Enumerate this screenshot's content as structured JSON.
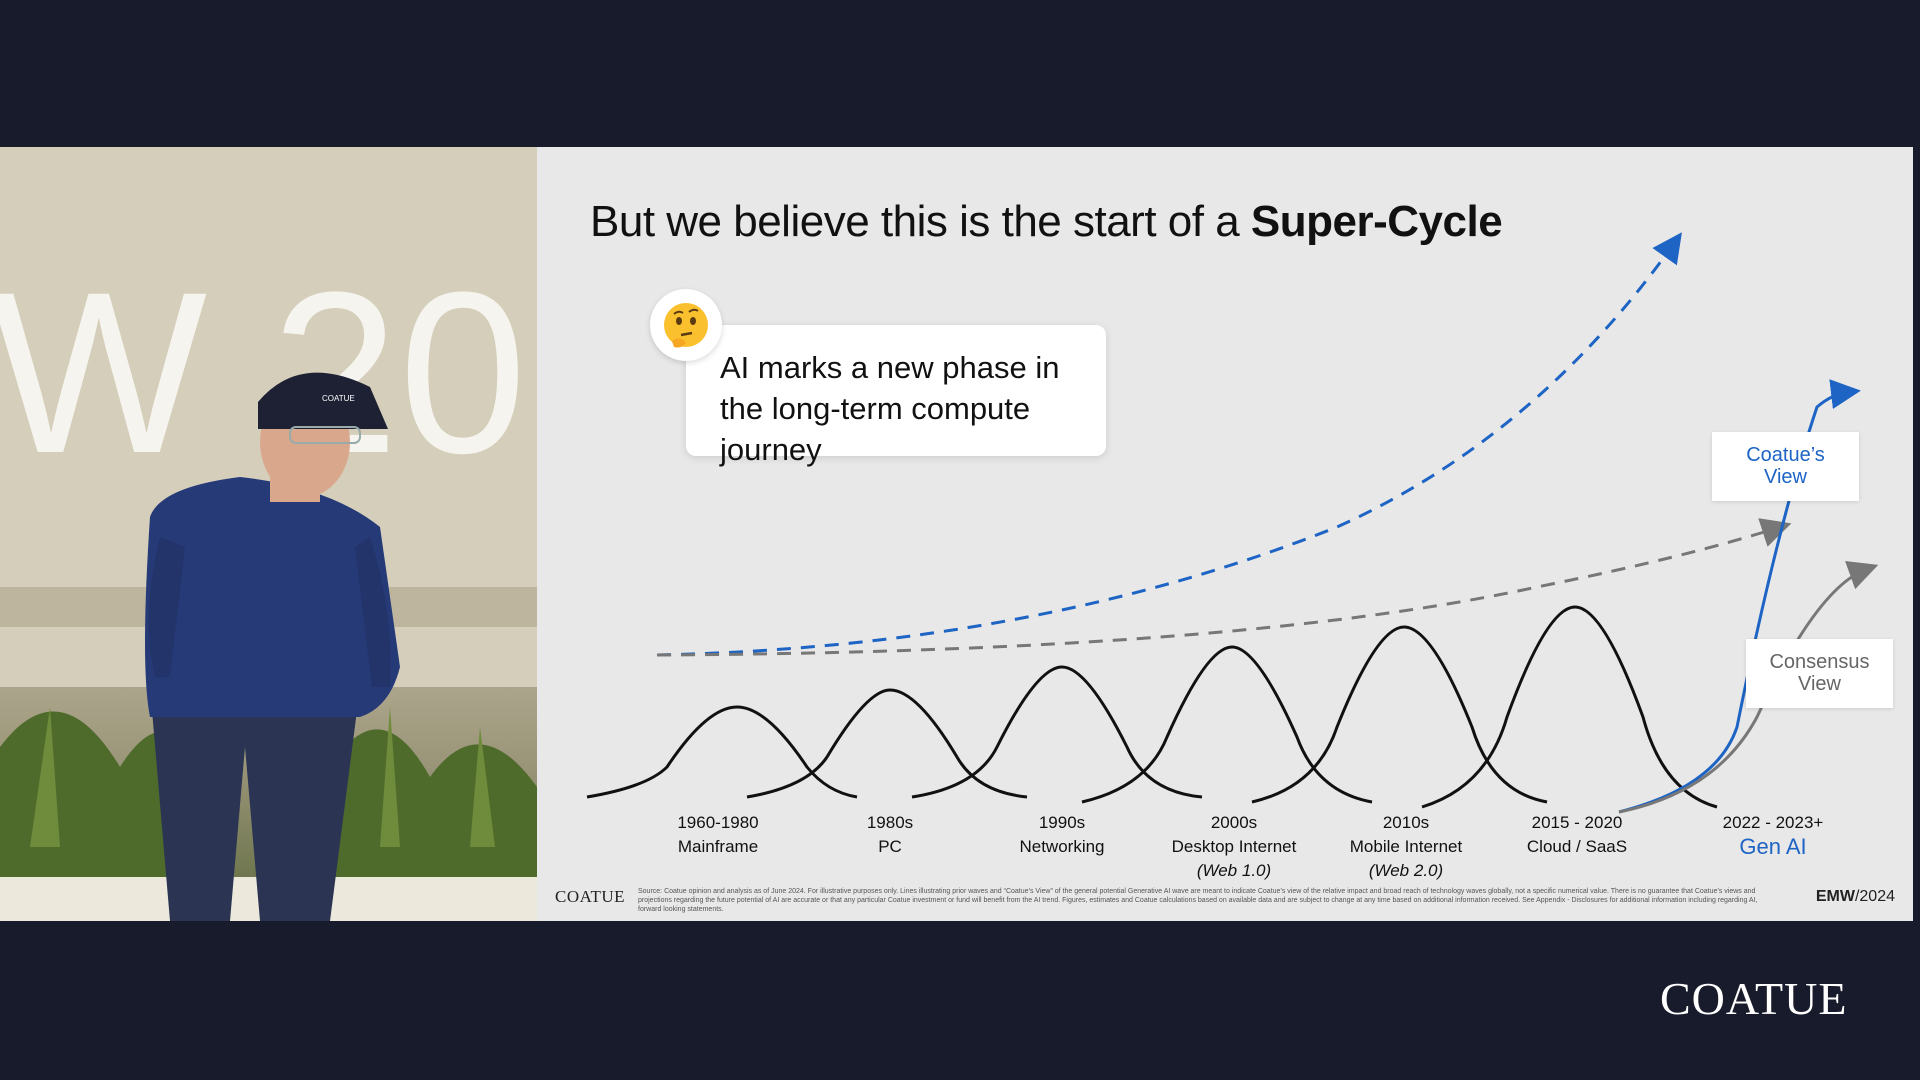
{
  "slide": {
    "title_plain": "But we believe this is the start of a ",
    "title_bold": "Super-Cycle",
    "callout_text": "AI marks a new phase in the long-term compute journey",
    "coatue_view_label": "Coatue’s View",
    "consensus_view_label": "Consensus View",
    "eras": [
      {
        "years": "1960-1980",
        "name": "Mainframe",
        "sub": ""
      },
      {
        "years": "1980s",
        "name": "PC",
        "sub": ""
      },
      {
        "years": "1990s",
        "name": "Networking",
        "sub": ""
      },
      {
        "years": "2000s",
        "name": "Desktop Internet",
        "sub": "(Web 1.0)"
      },
      {
        "years": "2010s",
        "name": "Mobile Internet",
        "sub": "(Web 2.0)"
      },
      {
        "years": "2015 - 2020",
        "name": "Cloud / SaaS",
        "sub": ""
      },
      {
        "years": "2022 - 2023+",
        "name": "Gen AI",
        "sub": ""
      }
    ],
    "footer_brand": "COATUE",
    "footer_disclaimer": "Source: Coatue opinion and analysis as of June 2024. For illustrative purposes only. Lines illustrating prior waves and “Coatue’s View” of the general potential Generative AI wave are meant to indicate Coatue’s view of the relative impact and broad reach of technology waves globally, not a specific numerical value. There is no guarantee that Coatue’s views and projections regarding the future potential of AI are accurate or that any particular Coatue investment or fund will benefit from the AI trend. Figures, estimates and Coatue calculations based on available data and are subject to change at any time based on additional information received. See Appendix - Disclosures for additional information including regarding AI, forward looking statements.",
    "footer_event_bold": "EMW",
    "footer_event_rest": "/2024"
  },
  "colors": {
    "accent_blue": "#1d64c4",
    "consensus_gray": "#777777",
    "background_dark": "#181b2b"
  },
  "stage": {
    "backdrop_text": "W 20",
    "cap_logo": "COATUE"
  },
  "corner_brand": "COATUE",
  "icons": {
    "callout": "thinking-face-icon"
  }
}
